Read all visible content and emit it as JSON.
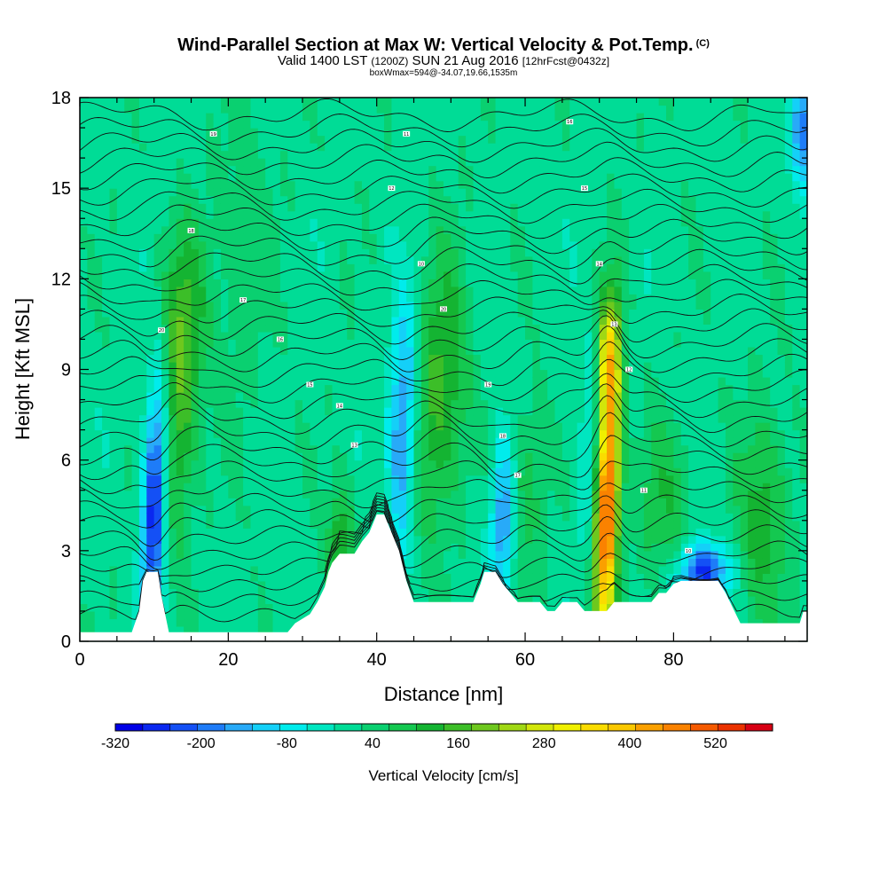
{
  "chart_data": {
    "type": "heatmap",
    "title": "Wind-Parallel Section at Max W: Vertical Velocity & Pot.Temp.",
    "title_mark": "(C)",
    "subtitle_prefix": "Valid 1400 LST",
    "subtitle_small1": "(1200Z)",
    "subtitle_mid": "SUN 21 Aug 2016",
    "subtitle_small2": "[12hrFcst@0432z]",
    "subtitle2": "boxWmax=594@-34.07,19.66,1535m",
    "xlabel": "Distance [nm]",
    "ylabel": "Height [Kft MSL]",
    "xlim": [
      0,
      98
    ],
    "ylim": [
      0,
      18
    ],
    "x_ticks": [
      "0",
      "20",
      "40",
      "60",
      "80"
    ],
    "x_tick_values": [
      0,
      20,
      40,
      60,
      80
    ],
    "y_ticks": [
      "0",
      "3",
      "6",
      "9",
      "12",
      "15",
      "18"
    ],
    "y_tick_values": [
      0,
      3,
      6,
      9,
      12,
      15,
      18
    ],
    "colorbar": {
      "title": "Vertical Velocity [cm/s]",
      "labels": [
        "-320",
        "-200",
        "-80",
        "40",
        "160",
        "280",
        "400",
        "520"
      ],
      "label_values": [
        -320,
        -200,
        -80,
        40,
        160,
        280,
        400,
        520
      ],
      "min": -320,
      "max": 600,
      "step": 40,
      "colors": [
        "#0000e6",
        "#0a28f0",
        "#1450f5",
        "#1e7cf8",
        "#28aaf8",
        "#14d0f8",
        "#00ecec",
        "#00e6c0",
        "#00dc96",
        "#0ad070",
        "#14c850",
        "#14b432",
        "#3cbe28",
        "#6ec81e",
        "#a0d814",
        "#d2e60a",
        "#f0f000",
        "#fadc00",
        "#fac800",
        "#faa000",
        "#fa8200",
        "#f55a00",
        "#eb3200",
        "#d70014"
      ]
    },
    "terrain_profile": [
      [
        0,
        0.3
      ],
      [
        7,
        0.3
      ],
      [
        8,
        1
      ],
      [
        8.5,
        2
      ],
      [
        9,
        2.3
      ],
      [
        10.5,
        2.3
      ],
      [
        11,
        1.5
      ],
      [
        11.5,
        0.9
      ],
      [
        12,
        0.3
      ],
      [
        28,
        0.3
      ],
      [
        29,
        0.6
      ],
      [
        31,
        0.9
      ],
      [
        32,
        1.3
      ],
      [
        33,
        1.8
      ],
      [
        33.5,
        2.3
      ],
      [
        34,
        2.6
      ],
      [
        35,
        2.9
      ],
      [
        37,
        2.9
      ],
      [
        38,
        3.3
      ],
      [
        39,
        3.6
      ],
      [
        40,
        4.2
      ],
      [
        41,
        4.2
      ],
      [
        42,
        3.6
      ],
      [
        43,
        3
      ],
      [
        44,
        2
      ],
      [
        45,
        1.3
      ],
      [
        53,
        1.3
      ],
      [
        54,
        1.9
      ],
      [
        54.5,
        2.3
      ],
      [
        56,
        2.3
      ],
      [
        57,
        1.9
      ],
      [
        58,
        1.6
      ],
      [
        59,
        1.3
      ],
      [
        62,
        1.3
      ],
      [
        63,
        1
      ],
      [
        64,
        1
      ],
      [
        65,
        1.3
      ],
      [
        67,
        1.3
      ],
      [
        68,
        1
      ],
      [
        71,
        1
      ],
      [
        72,
        1.3
      ],
      [
        77,
        1.3
      ],
      [
        78,
        1.6
      ],
      [
        79,
        1.6
      ],
      [
        80,
        1.9
      ],
      [
        81,
        2
      ],
      [
        86,
        2
      ],
      [
        87,
        1.6
      ],
      [
        88,
        1.1
      ],
      [
        89,
        0.6
      ],
      [
        97,
        0.6
      ],
      [
        97.5,
        1
      ],
      [
        98,
        1
      ]
    ],
    "updrafts": [
      {
        "x": 71,
        "z": 4.5,
        "sx": 1.1,
        "sz": 3.2,
        "w": 560
      },
      {
        "x": 71.2,
        "z": 9.5,
        "sx": 1.1,
        "sz": 1.5,
        "w": 260
      },
      {
        "x": 13.5,
        "z": 7.5,
        "sx": 1.6,
        "sz": 3,
        "w": 150
      },
      {
        "x": 14,
        "z": 11,
        "sx": 2.5,
        "sz": 2,
        "w": 90
      },
      {
        "x": 47,
        "z": 7.5,
        "sx": 2.2,
        "sz": 3,
        "w": 110
      },
      {
        "x": 50,
        "z": 9,
        "sx": 2,
        "sz": 3,
        "w": 90
      },
      {
        "x": 35,
        "z": 3,
        "sx": 1.2,
        "sz": 1.5,
        "w": 150
      },
      {
        "x": 92,
        "z": 4,
        "sx": 2.5,
        "sz": 2.5,
        "w": 120
      },
      {
        "x": 60,
        "z": 5,
        "sx": 1.8,
        "sz": 2,
        "w": 90
      },
      {
        "x": 79,
        "z": 4.5,
        "sx": 2.5,
        "sz": 2,
        "w": 90
      },
      {
        "x": 22,
        "z": 13,
        "sx": 3,
        "sz": 4,
        "w": 40
      }
    ],
    "downdrafts": [
      {
        "x": 10,
        "z": 4.5,
        "sx": 1.1,
        "sz": 3,
        "w": -300
      },
      {
        "x": 43.5,
        "z": 7,
        "sx": 1.4,
        "sz": 3,
        "w": -220
      },
      {
        "x": 57,
        "z": 4,
        "sx": 1.2,
        "sz": 2,
        "w": -200
      },
      {
        "x": 84,
        "z": 2.3,
        "sx": 2.5,
        "sz": 0.7,
        "w": -280
      },
      {
        "x": 69,
        "z": 6.5,
        "sx": 1.3,
        "sz": 2.5,
        "w": -100
      },
      {
        "x": 97.5,
        "z": 17,
        "sx": 1.2,
        "sz": 1.5,
        "w": -200
      }
    ],
    "isentrope_labels": [
      "20",
      "19",
      "18",
      "17",
      "16",
      "15",
      "14",
      "13",
      "12",
      "11",
      "10"
    ]
  }
}
